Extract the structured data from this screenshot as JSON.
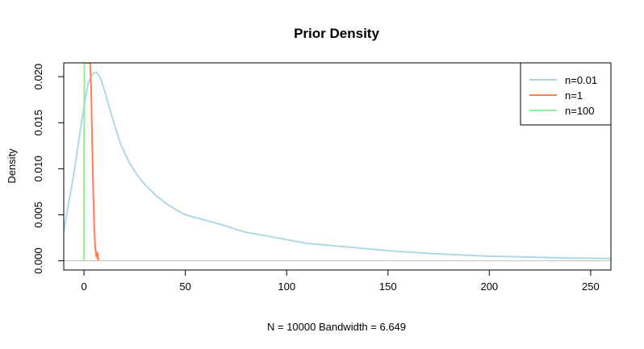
{
  "chart_data": {
    "type": "line",
    "title": "Prior Density",
    "xlabel": "N = 10000   Bandwidth = 6.649",
    "ylabel": "Density",
    "xlim": [
      -10,
      260
    ],
    "ylim": [
      -0.001,
      0.0215
    ],
    "x_ticks": [
      0,
      50,
      100,
      150,
      200,
      250
    ],
    "y_ticks": [
      0.0,
      0.005,
      0.01,
      0.015,
      0.02
    ],
    "x_tick_labels": [
      "0",
      "50",
      "100",
      "150",
      "200",
      "250"
    ],
    "y_tick_labels": [
      "0.000",
      "0.005",
      "0.010",
      "0.015",
      "0.020"
    ],
    "baseline": 0,
    "grid": false,
    "legend_position": "top-right",
    "series": [
      {
        "name": "n=0.01",
        "color": "#ADD8E6",
        "x": [
          -10,
          -5,
          0,
          2,
          4,
          6,
          8,
          10,
          12,
          15,
          18,
          22,
          26,
          30,
          35,
          40,
          45,
          50,
          55,
          60,
          65,
          70,
          75,
          80,
          90,
          100,
          110,
          120,
          130,
          140,
          150,
          160,
          170,
          180,
          190,
          200,
          210,
          220,
          230,
          240,
          250,
          260
        ],
        "y": [
          0.0032,
          0.0095,
          0.0168,
          0.0192,
          0.0203,
          0.0205,
          0.0199,
          0.0186,
          0.017,
          0.0148,
          0.0127,
          0.0108,
          0.0094,
          0.0083,
          0.0072,
          0.0063,
          0.0056,
          0.005,
          0.0047,
          0.0044,
          0.0041,
          0.0038,
          0.0034,
          0.0031,
          0.0027,
          0.0023,
          0.0019,
          0.0017,
          0.0015,
          0.0013,
          0.0011,
          0.00095,
          0.0008,
          0.0007,
          0.0006,
          0.0005,
          0.00045,
          0.0004,
          0.00035,
          0.0003,
          0.00028,
          0.00025
        ]
      },
      {
        "name": "n=1",
        "color": "#FF7F50",
        "x": [
          1.5,
          2,
          2.5,
          3,
          3.5,
          4,
          4.5,
          5,
          5.5,
          6,
          6.2,
          6.5,
          6.8,
          7
        ],
        "y": [
          0.0215,
          0.0215,
          0.0215,
          0.0215,
          0.019,
          0.013,
          0.008,
          0.004,
          0.0015,
          0.0005,
          0.001,
          0.0003,
          0.0008,
          0.0
        ]
      },
      {
        "name": "n=100",
        "color": "#90EE90",
        "x": [
          0,
          0,
          0.2,
          0.4,
          0.6
        ],
        "y": [
          0.0,
          0.0103,
          0.0215,
          0.0215,
          0.0215
        ]
      }
    ]
  }
}
